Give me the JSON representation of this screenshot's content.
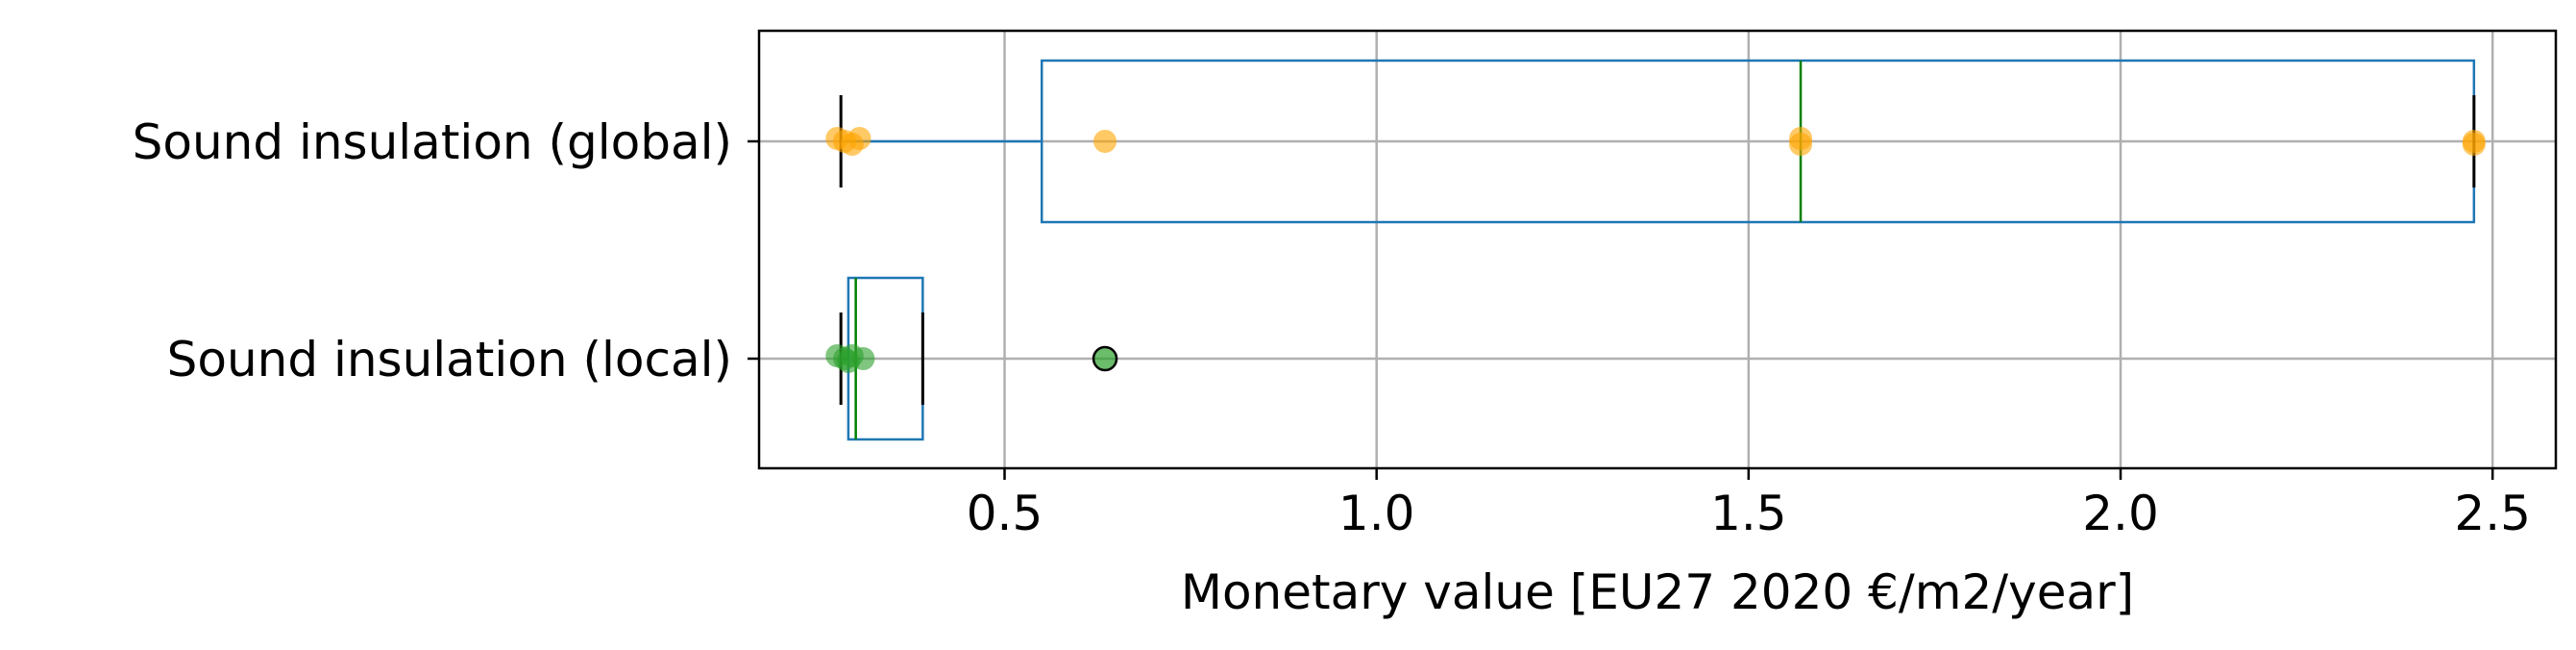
{
  "chart_data": {
    "type": "box",
    "orientation": "horizontal",
    "xlabel": "Monetary value [EU27 2020 €/m2/year]",
    "ylabel": "",
    "title": "",
    "xlim": [
      0.17,
      2.585
    ],
    "xticks": [
      0.5,
      1.0,
      1.5,
      2.0,
      2.5
    ],
    "xtick_labels": [
      "0.5",
      "1.0",
      "1.5",
      "2.0",
      "2.5"
    ],
    "grid": true,
    "categories": [
      "Sound insulation (global)",
      "Sound insulation (local)"
    ],
    "boxes": [
      {
        "name": "Sound insulation (global)",
        "whisker_low": 0.28,
        "q1": 0.55,
        "median": 1.57,
        "q3": 2.475,
        "whisker_high": 2.475,
        "points": [
          0.275,
          0.285,
          0.295,
          0.305,
          0.635,
          1.57,
          1.57,
          2.475,
          2.475
        ],
        "point_color": "#ffa500",
        "outliers": []
      },
      {
        "name": "Sound insulation (local)",
        "whisker_low": 0.28,
        "q1": 0.29,
        "median": 0.3,
        "q3": 0.39,
        "whisker_high": 0.39,
        "points": [
          0.275,
          0.285,
          0.29,
          0.295,
          0.31
        ],
        "point_color": "#2ca02c",
        "outliers": [
          0.635
        ]
      }
    ],
    "colors": {
      "box": "#1f77b4",
      "median": "#008000",
      "whisker_cap": "#000000",
      "grid": "#b0b0b0"
    }
  }
}
